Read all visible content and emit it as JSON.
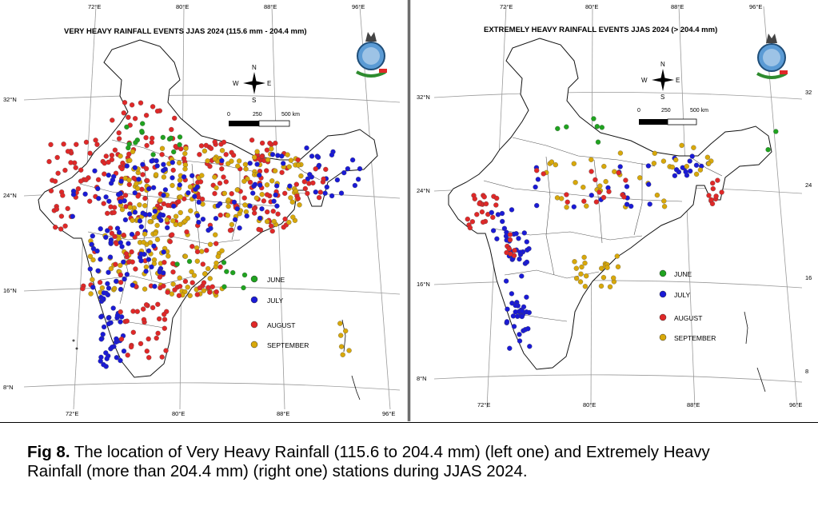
{
  "caption": {
    "label": "Fig 8.",
    "text": "The location of Very Heavy Rainfall (115.6 to 204.4 mm) (left one) and Extremely Heavy Rainfall (more than 204.4 mm) (right one) stations during JJAS 2024."
  },
  "panels": [
    {
      "title": "VERY HEAVY  RAINFALL EVENTS JJAS 2024 (115.6 mm - 204.4 mm)",
      "top_ticks": [
        "72°E",
        "80°E",
        "88°E",
        "96°E"
      ],
      "bottom_ticks": [
        "72°E",
        "80°E",
        "88°E",
        "96°E"
      ],
      "left_ticks": [
        "32°N",
        "24°N",
        "16°N",
        "8°N"
      ],
      "right_ticks": []
    },
    {
      "title": "EXTREMELY HEAVY RAINFALL EVENTS JJAS 2024 (> 204.4 mm)",
      "top_ticks": [
        "72°E",
        "80°E",
        "88°E",
        "96°E"
      ],
      "bottom_ticks": [
        "72°E",
        "80°E",
        "88°E",
        "96°E"
      ],
      "left_ticks": [
        "32°N",
        "24°N",
        "16°N",
        "8°N"
      ],
      "right_ticks": [
        "32",
        "24",
        "16",
        "8"
      ]
    }
  ],
  "compass": {
    "n": "N",
    "s": "S",
    "e": "E",
    "w": "W"
  },
  "scale_bar": {
    "zero": "0",
    "mid": "250",
    "end": "500 km"
  },
  "legend": [
    {
      "label": "JUNE",
      "color": "#1fa31f"
    },
    {
      "label": "JULY",
      "color": "#1a1ad6"
    },
    {
      "label": "AUGUST",
      "color": "#e02828"
    },
    {
      "label": "SEPTEMBER",
      "color": "#d8a80a"
    }
  ],
  "colors": {
    "border": "#000000",
    "grid": "#9a9a9a",
    "state_line": "#555555"
  }
}
